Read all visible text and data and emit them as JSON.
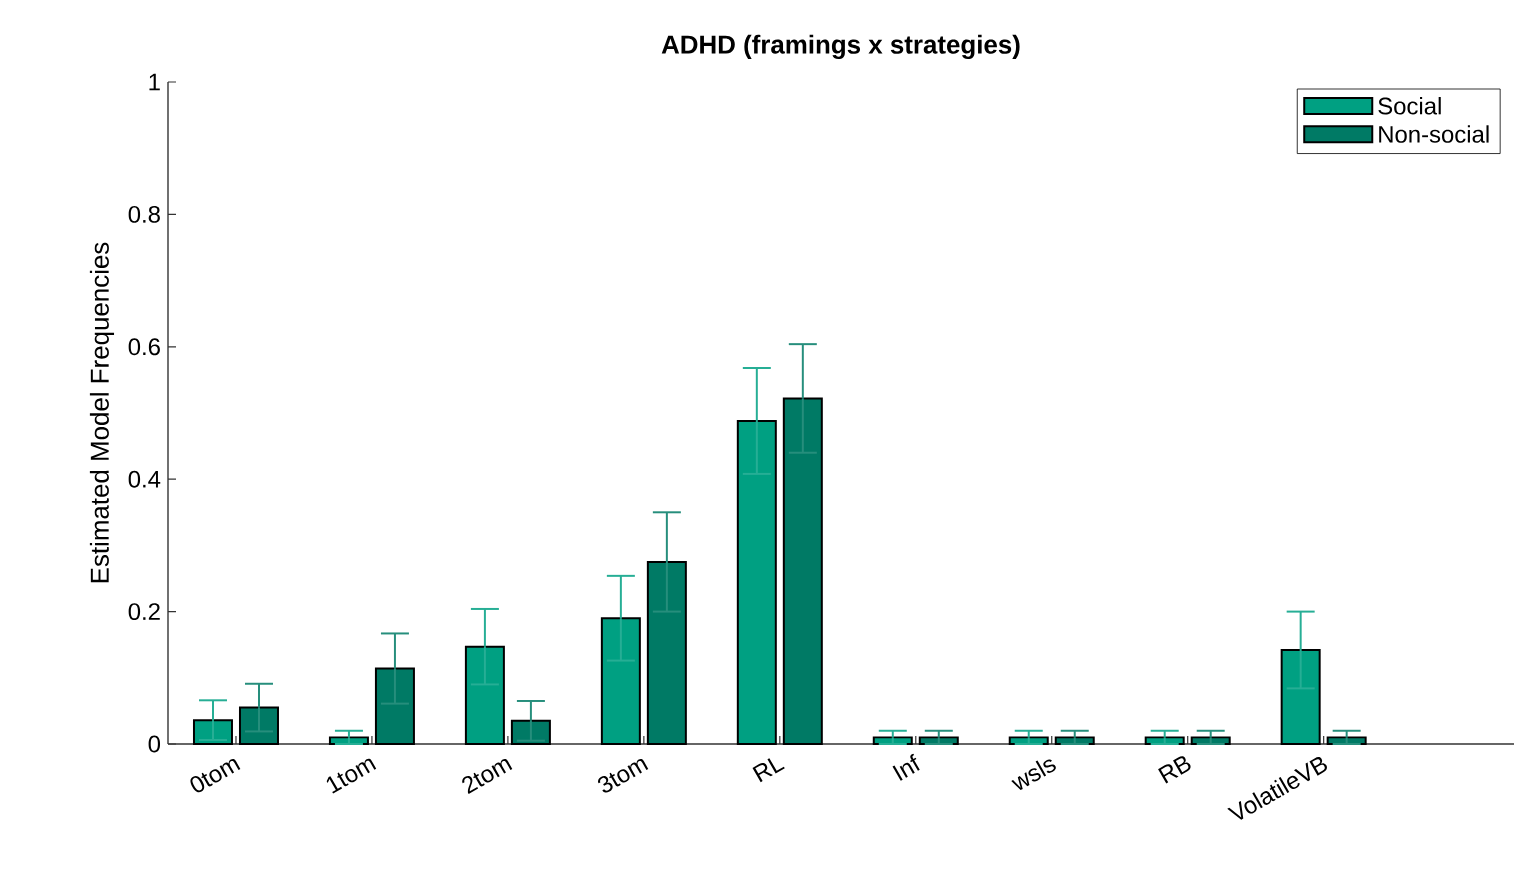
{
  "chart_data": {
    "type": "bar",
    "title": "ADHD (framings x strategies)",
    "ylabel": "Estimated Model Frequencies",
    "categories": [
      "0tom",
      "1tom",
      "2tom",
      "3tom",
      "RL",
      "Inf",
      "wsls",
      "RB",
      "VolatileVB"
    ],
    "series": [
      {
        "name": "Social",
        "color": "#00a082",
        "values": [
          0.036,
          0.01,
          0.147,
          0.19,
          0.488,
          0.01,
          0.01,
          0.01,
          0.142
        ],
        "errors": [
          0.03,
          0.01,
          0.057,
          0.064,
          0.08,
          0.01,
          0.01,
          0.01,
          0.058
        ]
      },
      {
        "name": "Non-social",
        "color": "#007a65",
        "values": [
          0.055,
          0.114,
          0.035,
          0.275,
          0.522,
          0.01,
          0.01,
          0.01,
          0.01
        ],
        "errors": [
          0.036,
          0.053,
          0.03,
          0.075,
          0.082,
          0.01,
          0.01,
          0.01,
          0.01
        ]
      }
    ],
    "ylim": [
      0,
      1
    ],
    "yticks": [
      0,
      0.2,
      0.4,
      0.6,
      0.8,
      1
    ],
    "legend": "top right",
    "grid": false
  }
}
